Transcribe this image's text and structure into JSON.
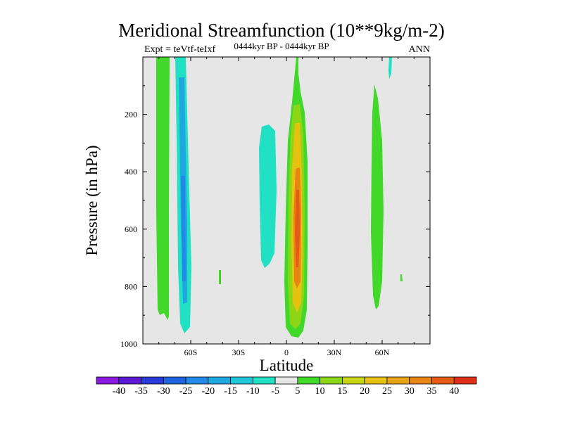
{
  "chart_data": {
    "type": "contour",
    "title": "Meridional Streamfunction (10**9kg/m-2)",
    "subtitle": "0444kyr BP - 0444kyr BP",
    "left_annotation": "Expt = teVtf-teIxf",
    "right_annotation": "ANN",
    "xlabel": "Latitude",
    "ylabel": "Pressure (in hPa)",
    "xlim": [
      -90,
      90
    ],
    "ylim": [
      1000,
      0
    ],
    "xticks": [
      -60,
      -30,
      0,
      30,
      60
    ],
    "xtick_labels": [
      "60S",
      "30S",
      "0",
      "30N",
      "60N"
    ],
    "yticks": [
      200,
      400,
      600,
      800,
      1000
    ],
    "ytick_labels": [
      "200",
      "400",
      "600",
      "800",
      "1000"
    ],
    "colorbar": {
      "levels": [
        -40,
        -35,
        -30,
        -25,
        -20,
        -15,
        -10,
        -5,
        5,
        10,
        15,
        20,
        25,
        30,
        35,
        40
      ],
      "labels": [
        "-40",
        "-35",
        "-30",
        "-25",
        "-20",
        "-15",
        "-10",
        "-5",
        "5",
        "10",
        "15",
        "20",
        "25",
        "30",
        "35",
        "40"
      ],
      "colors": [
        "#8a19e0",
        "#5b19d6",
        "#2a3ad8",
        "#1f62e0",
        "#2289e8",
        "#1fa8e0",
        "#1ec6d8",
        "#22e0c4",
        "#e6e6e6",
        "#42d82a",
        "#8cd618",
        "#c7d612",
        "#e6c210",
        "#e6a314",
        "#e68416",
        "#e65a16",
        "#e0301a"
      ]
    },
    "background_color": "#e6e6e6",
    "features": [
      {
        "name": "sh-high-positive",
        "lat_range": [
          -80,
          -73
        ],
        "p_range": [
          0,
          920
        ],
        "value": 5
      },
      {
        "name": "sh-negative-cell",
        "lat_range": [
          -67,
          -60
        ],
        "p_range": [
          0,
          960
        ],
        "value": -15
      },
      {
        "name": "tropical-negative-cell",
        "lat_range": [
          -17,
          -6
        ],
        "p_range": [
          220,
          740
        ],
        "value": -10
      },
      {
        "name": "equatorial-positive-cell",
        "lat_range": [
          0,
          11
        ],
        "p_range": [
          90,
          975
        ],
        "value": 25
      },
      {
        "name": "nh-positive-cell",
        "lat_range": [
          52,
          59
        ],
        "p_range": [
          130,
          870
        ],
        "value": 5
      }
    ]
  }
}
